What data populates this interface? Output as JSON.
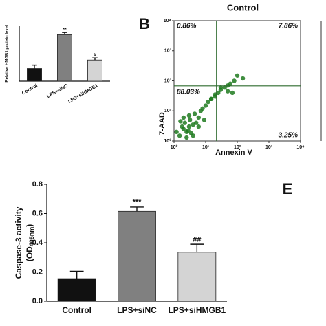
{
  "chart_data": [
    {
      "type": "bar",
      "ylabel": "Relative HMGB1 protein level",
      "categories": [
        "Control",
        "LPS+siNC",
        "LPS+siHMGB1"
      ],
      "values": [
        0.5,
        1.3,
        0.7
      ],
      "errors": [
        0.08,
        0.05,
        0.05
      ],
      "colors": [
        "#111111",
        "#808080",
        "#d4d4d4"
      ],
      "annotations": [
        null,
        "**",
        "#"
      ],
      "ylim": [
        0.2,
        1.5
      ]
    },
    {
      "type": "scatter",
      "panel_label": "B",
      "title": "Control",
      "xlabel": "Annexin V",
      "ylabel": "7-AAD",
      "log_scale": true,
      "color": "#1f7a1f",
      "xlim": [
        1,
        10000
      ],
      "ylim": [
        1,
        10000
      ],
      "xticks": [
        {
          "value": 1,
          "label": "10⁰"
        },
        {
          "value": 10,
          "label": "10¹"
        },
        {
          "value": 100,
          "label": "10²"
        },
        {
          "value": 1000,
          "label": "10³"
        },
        {
          "value": 10000,
          "label": "10⁴"
        }
      ],
      "yticks": [
        {
          "value": 1,
          "label": "10⁰"
        },
        {
          "value": 10,
          "label": "10¹"
        },
        {
          "value": 100,
          "label": "10²"
        },
        {
          "value": 1000,
          "label": "10³"
        },
        {
          "value": 10000,
          "label": "10⁴"
        }
      ],
      "x": [
        1.5,
        2,
        2.5,
        3,
        3.5,
        4,
        2.2,
        3.2,
        1.8,
        2.8,
        5,
        6,
        4.5,
        3,
        2,
        7,
        8,
        10,
        12,
        15,
        20,
        25,
        30,
        40,
        50,
        60,
        80,
        100,
        30,
        50,
        20,
        15,
        2.5,
        1.2,
        1.6,
        4,
        6,
        9,
        70,
        150
      ],
      "y": [
        1.5,
        2.5,
        2,
        3,
        1.8,
        3.5,
        4,
        5,
        3,
        2.2,
        4,
        6,
        8,
        7,
        6,
        10,
        12,
        15,
        20,
        25,
        30,
        40,
        50,
        60,
        70,
        80,
        100,
        150,
        60,
        45,
        35,
        25,
        1.3,
        2,
        4.5,
        1.5,
        3,
        5,
        40,
        120
      ],
      "gate_x": 22,
      "gate_y": 68,
      "quadrants": [
        0.86,
        7.86,
        88.03,
        3.25
      ],
      "quadrant_labels": [
        "0.86%",
        "7.86%",
        "88.03%",
        "3.25%"
      ]
    },
    {
      "type": "bar",
      "panel_label": "E",
      "ylabel": "Caspase-3 activity",
      "ylabel_unit": [
        "(OD",
        "405nm",
        ")"
      ],
      "categories": [
        "Control",
        "LPS+siNC",
        "LPS+siHMGB1"
      ],
      "values": [
        0.155,
        0.615,
        0.335
      ],
      "errors": [
        0.05,
        0.03,
        0.055
      ],
      "colors": [
        "#111111",
        "#808080",
        "#d4d4d4"
      ],
      "annotations": [
        null,
        "***",
        "##"
      ],
      "ylim": [
        0,
        0.8
      ],
      "yticks": [
        {
          "value": 0,
          "label": "0.0"
        },
        {
          "value": 0.2,
          "label": "0.2"
        },
        {
          "value": 0.4,
          "label": "0.4"
        },
        {
          "value": 0.6,
          "label": "0.6"
        },
        {
          "value": 0.8,
          "label": "0.8"
        }
      ]
    }
  ]
}
